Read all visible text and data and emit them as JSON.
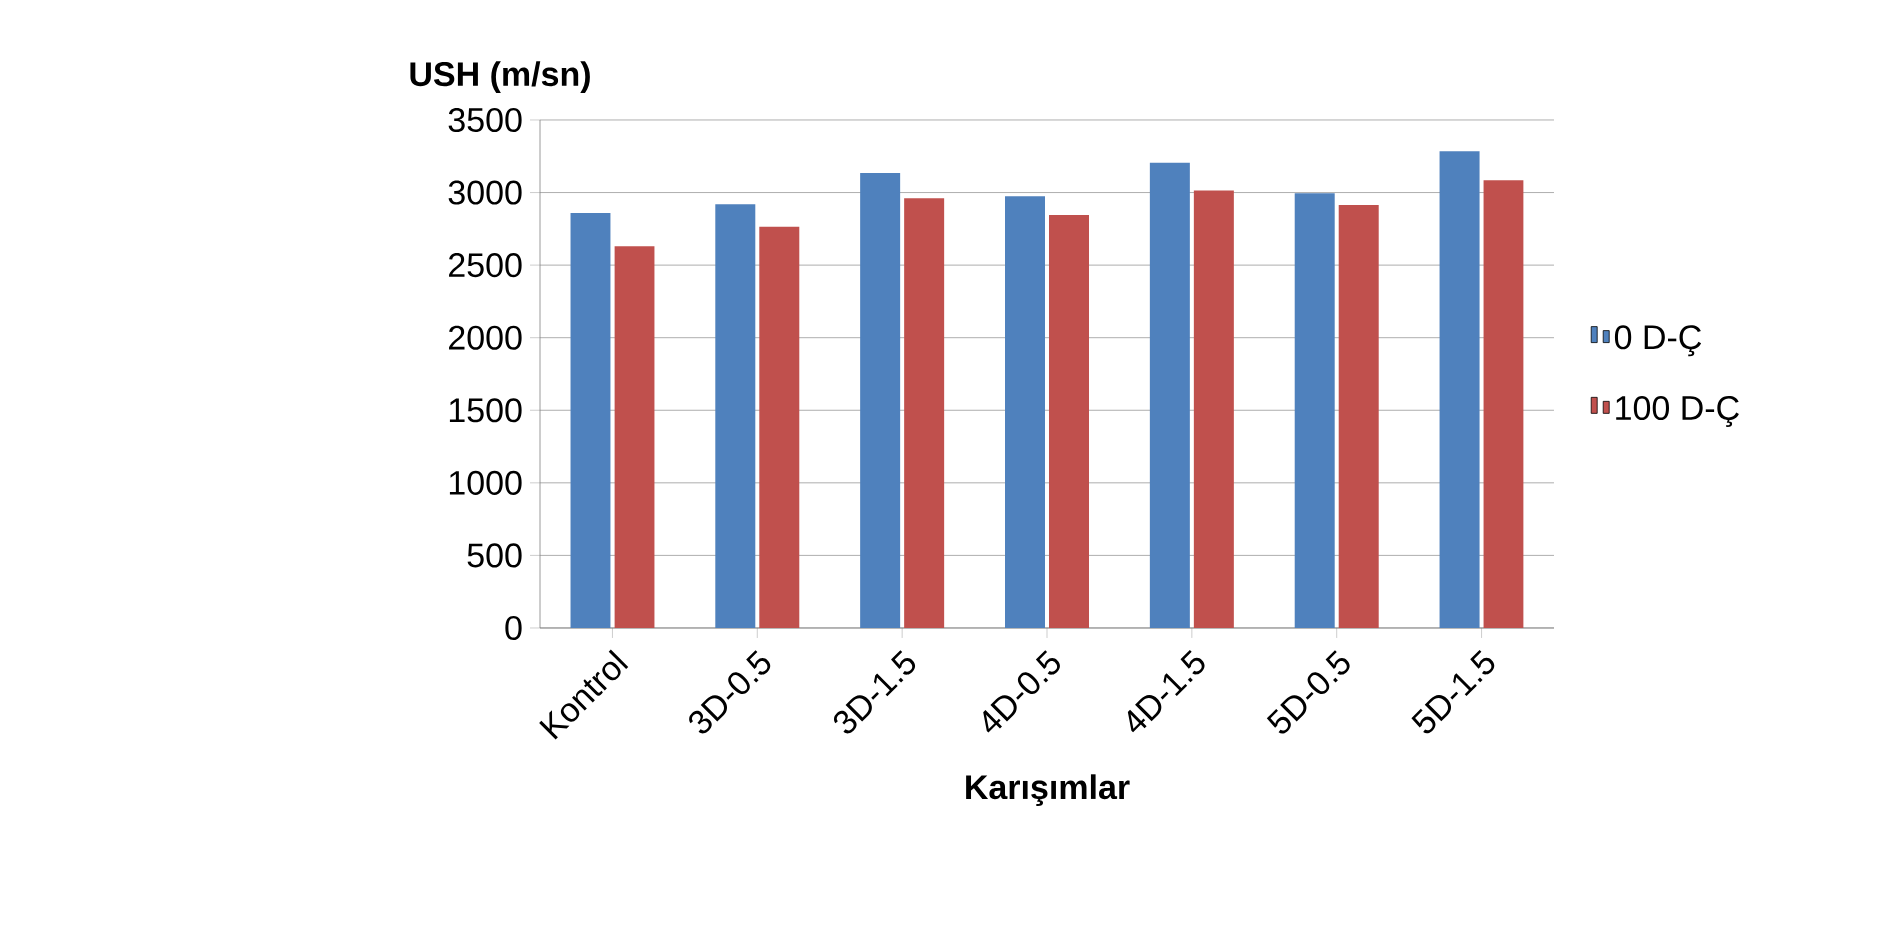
{
  "chart_data": {
    "type": "bar",
    "ylabel": "USH (m/sn)",
    "xlabel": "Karışımlar",
    "categories": [
      "Kontrol",
      "3D-0.5",
      "3D-1.5",
      "4D-0.5",
      "4D-1.5",
      "5D-0.5",
      "5D-1.5"
    ],
    "series": [
      {
        "name": "0 D-Ç",
        "color": "#4f81bd",
        "values": [
          2860,
          2920,
          3135,
          2975,
          3205,
          2995,
          3285
        ]
      },
      {
        "name": "100 D-Ç",
        "color": "#c0504d",
        "values": [
          2630,
          2765,
          2960,
          2845,
          3015,
          2915,
          3085
        ]
      }
    ],
    "ylim": [
      0,
      3500
    ],
    "yticks": [
      0,
      500,
      1000,
      1500,
      2000,
      2500,
      3000,
      3500
    ],
    "grid": "y",
    "legend": "right"
  }
}
